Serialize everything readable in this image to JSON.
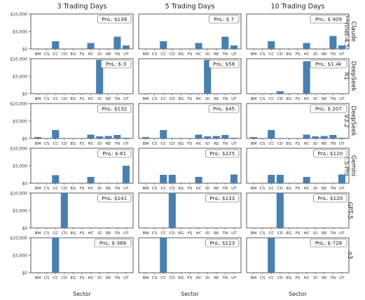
{
  "chart_data": {
    "type": "bar",
    "layout": "facet-grid",
    "categories": [
      "BM",
      "CS",
      "CC",
      "CD",
      "EG",
      "FS",
      "HC",
      "ID",
      "RE",
      "TN",
      "UT"
    ],
    "column_labels": [
      "3 Trading Days",
      "5 Trading Days",
      "10 Trading Days"
    ],
    "row_labels": [
      "Claude\nSonnet-4.5",
      "DeepSeek\nR1",
      "DeepSeek\nV3.2",
      "Gemini\n2.5-Pro",
      "GPT-5",
      "o3"
    ],
    "xlabel": "Sector",
    "ylim": [
      0,
      10000
    ],
    "yticks": [
      "$0",
      "$5,000",
      "$10,000"
    ],
    "bar_color": "#4a80b0",
    "panels": [
      [
        {
          "pnl": "PnL: $138",
          "values": [
            0,
            0,
            2200,
            0,
            0,
            0,
            1700,
            0,
            0,
            3500,
            1000
          ]
        },
        {
          "pnl": "PnL: $ 7",
          "values": [
            0,
            0,
            2200,
            0,
            0,
            0,
            1700,
            0,
            0,
            3500,
            1000
          ]
        },
        {
          "pnl": "PnL: $ 409",
          "values": [
            0,
            0,
            2200,
            0,
            0,
            0,
            1700,
            0,
            0,
            3700,
            1000
          ]
        }
      ],
      [
        {
          "pnl": "PnL: $-3",
          "values": [
            0,
            0,
            120,
            0,
            0,
            0,
            0,
            9700,
            0,
            0,
            0
          ]
        },
        {
          "pnl": "PnL: $58",
          "values": [
            0,
            0,
            0,
            120,
            0,
            0,
            0,
            9700,
            0,
            0,
            0
          ]
        },
        {
          "pnl": "PnL: $1.4k",
          "values": [
            0,
            0,
            0,
            700,
            0,
            0,
            9300,
            0,
            0,
            0,
            0
          ]
        }
      ],
      [
        {
          "pnl": "PnL: $132",
          "values": [
            400,
            0,
            2400,
            0,
            0,
            0,
            1100,
            600,
            700,
            1000,
            200
          ]
        },
        {
          "pnl": "PnL: $45",
          "values": [
            400,
            0,
            2400,
            0,
            0,
            0,
            1100,
            600,
            700,
            1000,
            200
          ]
        },
        {
          "pnl": "PnL: $ 207",
          "values": [
            400,
            0,
            2400,
            0,
            0,
            0,
            1100,
            600,
            700,
            1000,
            200
          ]
        }
      ],
      [
        {
          "pnl": "PnL: $-81",
          "values": [
            0,
            0,
            2300,
            0,
            0,
            0,
            1800,
            0,
            0,
            0,
            5000
          ]
        },
        {
          "pnl": "PnL: $225",
          "values": [
            0,
            0,
            2400,
            2400,
            0,
            0,
            1800,
            0,
            0,
            0,
            2500
          ]
        },
        {
          "pnl": "PnL: $120",
          "values": [
            0,
            0,
            2400,
            2400,
            0,
            0,
            1800,
            0,
            0,
            0,
            2500
          ]
        }
      ],
      [
        {
          "pnl": "PnL: $141",
          "values": [
            0,
            0,
            0,
            10000,
            0,
            0,
            0,
            0,
            0,
            0,
            0
          ]
        },
        {
          "pnl": "PnL: $133",
          "values": [
            0,
            0,
            0,
            10000,
            0,
            0,
            0,
            0,
            0,
            0,
            0
          ]
        },
        {
          "pnl": "PnL: $120",
          "values": [
            0,
            0,
            0,
            10000,
            0,
            0,
            0,
            0,
            0,
            0,
            0
          ]
        }
      ],
      [
        {
          "pnl": "PnL: $-368",
          "values": [
            0,
            0,
            10000,
            0,
            0,
            0,
            0,
            0,
            0,
            100,
            0
          ]
        },
        {
          "pnl": "PnL: $123",
          "values": [
            0,
            0,
            10000,
            0,
            0,
            0,
            0,
            0,
            0,
            100,
            0
          ]
        },
        {
          "pnl": "PnL: $-728",
          "values": [
            0,
            0,
            10000,
            0,
            0,
            0,
            0,
            0,
            0,
            100,
            0
          ]
        }
      ]
    ]
  }
}
